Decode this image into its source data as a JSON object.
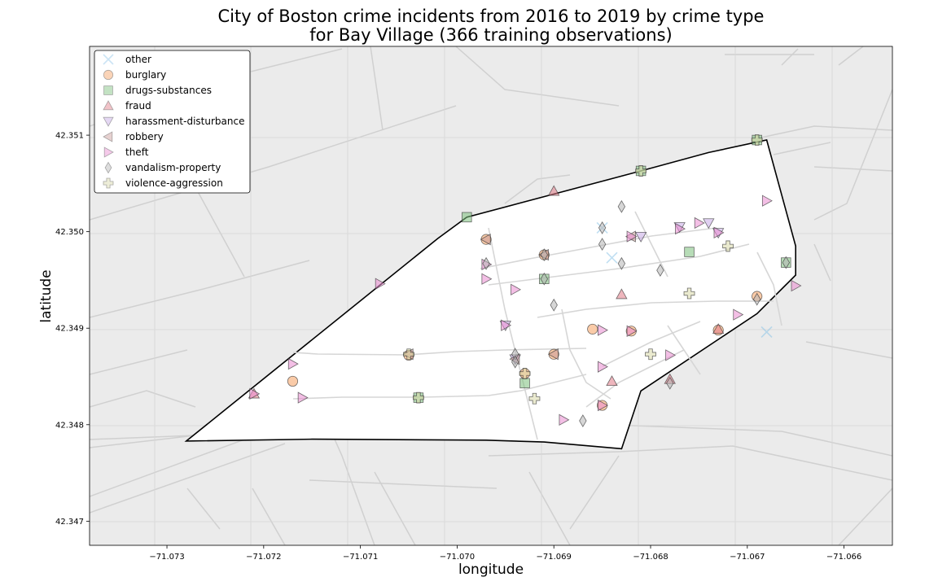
{
  "chart_data": {
    "type": "scatter",
    "title_line1": "City of Boston crime incidents from 2016 to 2019 by crime type",
    "title_line2": "for Bay Village (366 training observations)",
    "xlabel": "longitude",
    "ylabel": "latitude",
    "xlim": [
      -71.0738,
      -71.0655
    ],
    "ylim": [
      42.34675,
      42.35192
    ],
    "xticks": [
      -71.073,
      -71.072,
      -71.071,
      -71.07,
      -71.069,
      -71.068,
      -71.067,
      -71.066
    ],
    "xtick_labels": [
      "−71.073",
      "−71.072",
      "−71.071",
      "−71.070",
      "−71.069",
      "−71.068",
      "−71.067",
      "−71.066"
    ],
    "yticks": [
      42.347,
      42.348,
      42.349,
      42.35,
      42.351
    ],
    "ytick_labels": [
      "42.347",
      "42.348",
      "42.349",
      "42.350",
      "42.351"
    ],
    "grid": true,
    "legend_position": "top-left",
    "background_color": "#ebebeb",
    "region_fill": "#ffffff",
    "region_boundary": [
      [
        -71.0728,
        42.34783
      ],
      [
        -71.0702,
        42.34993
      ],
      [
        -71.0699,
        42.35015
      ],
      [
        -71.0681,
        42.35063
      ],
      [
        -71.0674,
        42.35082
      ],
      [
        -71.0668,
        42.35095
      ],
      [
        -71.0665,
        42.34985
      ],
      [
        -71.0665,
        42.34955
      ],
      [
        -71.0669,
        42.34915
      ],
      [
        -71.0681,
        42.34835
      ],
      [
        -71.0683,
        42.34775
      ],
      [
        -71.0691,
        42.34782
      ],
      [
        -71.0697,
        42.34784
      ],
      [
        -71.0715,
        42.34785
      ],
      [
        -71.0728,
        42.34783
      ]
    ],
    "series": [
      {
        "name": "other",
        "marker": "x",
        "color": "#8cc4e8",
        "points": [
          [
            -71.0685,
            42.35004
          ],
          [
            -71.0684,
            42.34973
          ],
          [
            -71.0668,
            42.34896
          ]
        ]
      },
      {
        "name": "burglary",
        "marker": "circle",
        "color": "#f5a061",
        "points": [
          [
            -71.0717,
            42.34845
          ],
          [
            -71.0693,
            42.34853
          ],
          [
            -71.0685,
            42.3482
          ],
          [
            -71.0682,
            42.34897
          ],
          [
            -71.069,
            42.34873
          ],
          [
            -71.0697,
            42.34992
          ],
          [
            -71.0691,
            42.34976
          ],
          [
            -71.0673,
            42.34898
          ],
          [
            -71.0669,
            42.34933
          ],
          [
            -71.0686,
            42.34899
          ],
          [
            -71.0705,
            42.34872
          ]
        ]
      },
      {
        "name": "drugs-substances",
        "marker": "square",
        "color": "#7bbf7b",
        "points": [
          [
            -71.0693,
            42.34843
          ],
          [
            -71.0691,
            42.34951
          ],
          [
            -71.0676,
            42.34979
          ],
          [
            -71.0666,
            42.34968
          ],
          [
            -71.0699,
            42.35015
          ],
          [
            -71.0669,
            42.35095
          ],
          [
            -71.0681,
            42.35063
          ],
          [
            -71.0704,
            42.34828
          ]
        ]
      },
      {
        "name": "fraud",
        "marker": "triangle-up",
        "color": "#e07a86",
        "points": [
          [
            -71.0683,
            42.34935
          ],
          [
            -71.0684,
            42.34845
          ],
          [
            -71.0678,
            42.34847
          ],
          [
            -71.069,
            42.35042
          ],
          [
            -71.0721,
            42.34832
          ],
          [
            -71.0673,
            42.34899
          ]
        ]
      },
      {
        "name": "harassment-disturbance",
        "marker": "triangle-down",
        "color": "#c6a9e6",
        "points": [
          [
            -71.0681,
            42.34995
          ],
          [
            -71.0674,
            42.35009
          ],
          [
            -71.0677,
            42.35005
          ],
          [
            -71.0673,
            42.34999
          ],
          [
            -71.0695,
            42.34903
          ],
          [
            -71.0694,
            42.34868
          ]
        ]
      },
      {
        "name": "robbery",
        "marker": "triangle-left",
        "color": "#c79a97",
        "points": [
          [
            -71.0705,
            42.34873
          ],
          [
            -71.069,
            42.34873
          ],
          [
            -71.0682,
            42.34995
          ],
          [
            -71.0694,
            42.34868
          ],
          [
            -71.0691,
            42.34976
          ],
          [
            -71.0697,
            42.34992
          ]
        ]
      },
      {
        "name": "theft",
        "marker": "triangle-right",
        "color": "#e98ad0",
        "points": [
          [
            -71.0708,
            42.34946
          ],
          [
            -71.0697,
            42.34951
          ],
          [
            -71.0695,
            42.34903
          ],
          [
            -71.0694,
            42.3494
          ],
          [
            -71.0685,
            42.34898
          ],
          [
            -71.0685,
            42.3486
          ],
          [
            -71.0682,
            42.34897
          ],
          [
            -71.0678,
            42.34872
          ],
          [
            -71.0671,
            42.34914
          ],
          [
            -71.0665,
            42.34944
          ],
          [
            -71.0668,
            42.35032
          ],
          [
            -71.0717,
            42.34863
          ],
          [
            -71.0716,
            42.34828
          ],
          [
            -71.0721,
            42.34832
          ],
          [
            -71.0689,
            42.34805
          ],
          [
            -71.0697,
            42.34966
          ],
          [
            -71.0682,
            42.34995
          ],
          [
            -71.0673,
            42.34999
          ],
          [
            -71.0675,
            42.35009
          ],
          [
            -71.0677,
            42.35003
          ],
          [
            -71.0685,
            42.3482
          ]
        ]
      },
      {
        "name": "vandalism-property",
        "marker": "diamond",
        "color": "#b4b4b4",
        "points": [
          [
            -71.0683,
            42.35026
          ],
          [
            -71.0685,
            42.35004
          ],
          [
            -71.0685,
            42.34987
          ],
          [
            -71.0683,
            42.34967
          ],
          [
            -71.0679,
            42.3496
          ],
          [
            -71.0669,
            42.3493
          ],
          [
            -71.0687,
            42.34804
          ],
          [
            -71.069,
            42.34924
          ],
          [
            -71.0694,
            42.34873
          ],
          [
            -71.0694,
            42.34865
          ],
          [
            -71.0697,
            42.34967
          ],
          [
            -71.0691,
            42.34976
          ],
          [
            -71.0691,
            42.34951
          ],
          [
            -71.0678,
            42.34843
          ],
          [
            -71.0666,
            42.34968
          ]
        ]
      },
      {
        "name": "violence-aggression",
        "marker": "plus",
        "color": "#d8d8a8",
        "points": [
          [
            -71.0681,
            42.35063
          ],
          [
            -71.0669,
            42.35095
          ],
          [
            -71.0704,
            42.34828
          ],
          [
            -71.0693,
            42.34853
          ],
          [
            -71.0692,
            42.34827
          ],
          [
            -71.068,
            42.34873
          ],
          [
            -71.0676,
            42.34936
          ],
          [
            -71.0672,
            42.34985
          ],
          [
            -71.0705,
            42.34873
          ]
        ]
      }
    ]
  }
}
